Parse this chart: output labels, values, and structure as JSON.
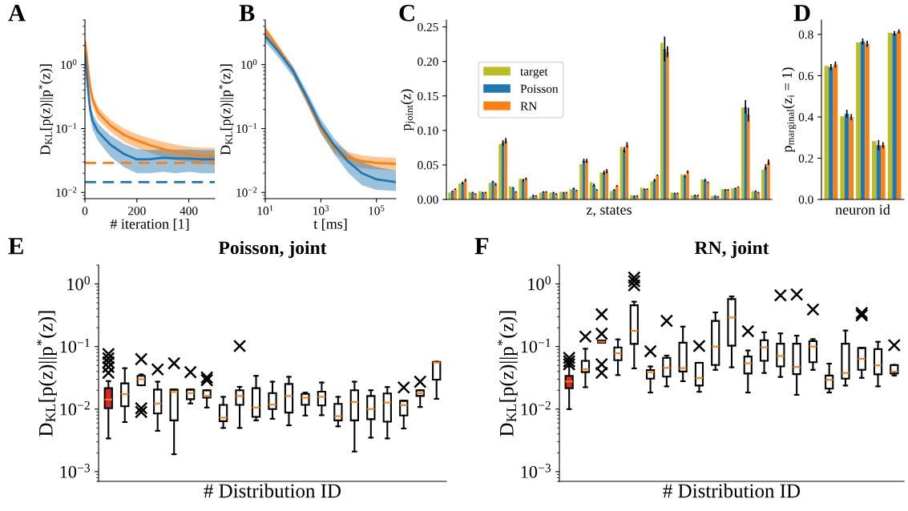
{
  "chart_data": [
    {
      "type": "line",
      "annotations": [
        "A"
      ],
      "xlabel": "# iteration [1]",
      "ylabel": "D$_{KL}$[p(z)||p$^{*}$(z)]",
      "log": "y",
      "xlim": [
        0,
        500
      ],
      "xticks": [
        0,
        200,
        400
      ],
      "ylim": [
        0.008,
        5
      ],
      "yticks": [
        {
          "value": 0.01,
          "label": "10$^{−2}$"
        },
        {
          "value": 0.1,
          "label": "10$^{−1}$"
        },
        {
          "value": 1,
          "label": "10$^{0}$"
        }
      ],
      "x": [
        0,
        5,
        10,
        20,
        30,
        50,
        75,
        100,
        150,
        200,
        250,
        300,
        350,
        400,
        450,
        500
      ],
      "series": [
        {
          "color": "#ff7f0e",
          "values": [
            2.3,
            1.6,
            1.0,
            0.45,
            0.28,
            0.18,
            0.14,
            0.11,
            0.08,
            0.065,
            0.055,
            0.048,
            0.043,
            0.04,
            0.038,
            0.037
          ],
          "lower": [
            2.0,
            1.3,
            0.8,
            0.36,
            0.22,
            0.14,
            0.11,
            0.088,
            0.062,
            0.05,
            0.042,
            0.036,
            0.032,
            0.03,
            0.028,
            0.027
          ],
          "upper": [
            2.6,
            1.9,
            1.2,
            0.55,
            0.34,
            0.22,
            0.17,
            0.135,
            0.1,
            0.082,
            0.07,
            0.062,
            0.056,
            0.052,
            0.05,
            0.05
          ]
        },
        {
          "color": "#1f77b4",
          "values": [
            1.5,
            0.9,
            0.5,
            0.2,
            0.13,
            0.09,
            0.07,
            0.055,
            0.04,
            0.033,
            0.033,
            0.035,
            0.034,
            0.034,
            0.033,
            0.033
          ],
          "lower": [
            1.2,
            0.7,
            0.38,
            0.15,
            0.095,
            0.065,
            0.048,
            0.036,
            0.025,
            0.02,
            0.02,
            0.021,
            0.02,
            0.021,
            0.02,
            0.02
          ],
          "upper": [
            1.8,
            1.1,
            0.62,
            0.26,
            0.17,
            0.12,
            0.095,
            0.077,
            0.058,
            0.048,
            0.046,
            0.048,
            0.047,
            0.047,
            0.046,
            0.046
          ]
        }
      ],
      "ref_lines": [
        {
          "axis": "y",
          "value": 0.029,
          "color": "#ff7f0e",
          "line_style": "dashed"
        },
        {
          "axis": "y",
          "value": 0.0145,
          "color": "#1f77b4",
          "line_style": "dashed"
        }
      ]
    },
    {
      "type": "line",
      "annotations": [
        "B"
      ],
      "xlabel": "t [ms]",
      "ylabel": "D$_{KL}$[p(z)||p$^{*}$(z)]",
      "log": "xy",
      "xlim": [
        10,
        500000
      ],
      "xticks": [
        {
          "value": 10,
          "label": "10$^{1}$"
        },
        {
          "value": 1000,
          "label": "10$^{3}$"
        },
        {
          "value": 100000,
          "label": "10$^{5}$"
        }
      ],
      "ylim": [
        0.008,
        5
      ],
      "yticks": [
        {
          "value": 0.01,
          "label": "10$^{−2}$"
        },
        {
          "value": 0.1,
          "label": "10$^{−1}$"
        },
        {
          "value": 1,
          "label": "10$^{0}$"
        }
      ],
      "x": [
        10,
        30,
        100,
        300,
        1000,
        3000,
        10000,
        30000,
        100000,
        500000
      ],
      "series": [
        {
          "color": "#ff7f0e",
          "values": [
            3.5,
            1.8,
            0.8,
            0.3,
            0.1,
            0.05,
            0.035,
            0.031,
            0.029,
            0.028
          ],
          "lower": [
            3.0,
            1.6,
            0.7,
            0.26,
            0.085,
            0.042,
            0.028,
            0.024,
            0.023,
            0.022
          ],
          "upper": [
            4.0,
            2.0,
            0.9,
            0.34,
            0.12,
            0.06,
            0.043,
            0.038,
            0.036,
            0.035
          ]
        },
        {
          "color": "#1f77b4",
          "values": [
            2.8,
            1.6,
            0.8,
            0.32,
            0.11,
            0.055,
            0.03,
            0.02,
            0.016,
            0.0145
          ],
          "lower": [
            2.3,
            1.3,
            0.65,
            0.26,
            0.085,
            0.04,
            0.02,
            0.013,
            0.011,
            0.0105
          ],
          "upper": [
            3.2,
            1.9,
            0.95,
            0.39,
            0.14,
            0.07,
            0.04,
            0.03,
            0.025,
            0.022
          ]
        }
      ]
    },
    {
      "type": "bar",
      "annotations": [
        "C"
      ],
      "xlabel": "z, states",
      "ylabel": "p$_{joint}$(z)",
      "ylim": [
        0,
        0.26
      ],
      "yticks": [
        {
          "value": 0,
          "label": "0.00"
        },
        {
          "value": 0.05,
          "label": "0.05"
        },
        {
          "value": 0.1,
          "label": "0.10"
        },
        {
          "value": 0.15,
          "label": "0.15"
        },
        {
          "value": 0.2,
          "label": "0.20"
        },
        {
          "value": 0.25,
          "label": "0.25"
        }
      ],
      "legend": "top left",
      "categories": [
        null,
        null,
        null,
        null,
        null,
        null,
        null,
        null,
        null,
        null,
        null,
        null,
        null,
        null,
        null,
        null,
        null,
        null,
        null,
        null,
        null,
        null,
        null,
        null,
        null,
        null,
        null,
        null,
        null,
        null,
        null,
        null
      ],
      "series": [
        {
          "name": "target",
          "color": "#bcbd22",
          "values": [
            0.01,
            0.023,
            0.011,
            0.012,
            0.024,
            0.08,
            0.019,
            0.03,
            0.004,
            0.01,
            0.01,
            0.011,
            0.015,
            0.051,
            0.025,
            0.039,
            0.012,
            0.076,
            0.006,
            0.017,
            0.026,
            0.227,
            0.01,
            0.036,
            0.006,
            0.029,
            0.005,
            0.015,
            0.016,
            0.133,
            0.012,
            0.043
          ]
        },
        {
          "name": "Poisson",
          "color": "#1f77b4",
          "values": [
            0.012,
            0.024,
            0.01,
            0.01,
            0.026,
            0.082,
            0.017,
            0.028,
            0.006,
            0.011,
            0.01,
            0.01,
            0.016,
            0.056,
            0.021,
            0.039,
            0.014,
            0.072,
            0.005,
            0.015,
            0.028,
            0.218,
            0.009,
            0.034,
            0.006,
            0.028,
            0.005,
            0.014,
            0.016,
            0.134,
            0.012,
            0.047
          ],
          "errors": [
            0.001,
            0.002,
            0.001,
            0.001,
            0.001,
            0.004,
            0.001,
            0.002,
            0.001,
            0.001,
            0.001,
            0.001,
            0.001,
            0.003,
            0.002,
            0.003,
            0.001,
            0.004,
            0.001,
            0.001,
            0.002,
            0.018,
            0.001,
            0.002,
            0.001,
            0.002,
            0.001,
            0.001,
            0.001,
            0.01,
            0.001,
            0.004
          ]
        },
        {
          "name": "RN",
          "color": "#ff7f0e",
          "values": [
            0.015,
            0.028,
            0.008,
            0.01,
            0.022,
            0.085,
            0.011,
            0.03,
            0.005,
            0.011,
            0.008,
            0.01,
            0.013,
            0.056,
            0.014,
            0.041,
            0.02,
            0.079,
            0.005,
            0.015,
            0.035,
            0.214,
            0.009,
            0.04,
            0.006,
            0.025,
            0.004,
            0.014,
            0.018,
            0.123,
            0.01,
            0.054
          ],
          "errors": [
            0.001,
            0.002,
            0.001,
            0.001,
            0.002,
            0.004,
            0.001,
            0.002,
            0.001,
            0.001,
            0.001,
            0.001,
            0.001,
            0.003,
            0.001,
            0.003,
            0.001,
            0.004,
            0.001,
            0.001,
            0.001,
            0.008,
            0.001,
            0.002,
            0.001,
            0.001,
            0.001,
            0.001,
            0.001,
            0.01,
            0.001,
            0.004
          ]
        }
      ]
    },
    {
      "type": "bar",
      "annotations": [
        "D"
      ],
      "xlabel": "neuron id",
      "ylabel": "p$_{marginal}$(z$_{i}$ = 1)",
      "ylim": [
        0,
        0.87
      ],
      "yticks": [
        {
          "value": 0,
          "label": "0.0"
        },
        {
          "value": 0.2,
          "label": "0.2"
        },
        {
          "value": 0.4,
          "label": "0.4"
        },
        {
          "value": 0.6,
          "label": "0.6"
        },
        {
          "value": 0.8,
          "label": "0.8"
        }
      ],
      "categories": [
        null,
        null,
        null,
        null,
        null
      ],
      "series": [
        {
          "color": "#bcbd22",
          "values": [
            0.648,
            0.403,
            0.761,
            0.283,
            0.808
          ]
        },
        {
          "color": "#1f77b4",
          "values": [
            0.641,
            0.415,
            0.766,
            0.263,
            0.805
          ],
          "errors": [
            0.015,
            0.02,
            0.015,
            0.025,
            0.012
          ]
        },
        {
          "color": "#ff7f0e",
          "values": [
            0.654,
            0.399,
            0.755,
            0.263,
            0.815
          ],
          "errors": [
            0.015,
            0.015,
            0.015,
            0.015,
            0.01
          ]
        }
      ]
    },
    {
      "type": "box",
      "annotations": [
        "E"
      ],
      "title": "Poisson, joint",
      "xlabel": "# Distribution ID",
      "ylabel": "D$_{KL}$[p(z)||p$^{*}$(z)]",
      "log": "y",
      "ylim": [
        0.0007,
        2
      ],
      "yticks": [
        {
          "value": 0.001,
          "label": "10$^{−3}$"
        },
        {
          "value": 0.01,
          "label": "10$^{−2}$"
        },
        {
          "value": 0.1,
          "label": "10$^{−1}$"
        },
        {
          "value": 1,
          "label": "10$^{0}$"
        }
      ],
      "tick_labels": "y",
      "marker": "cross",
      "categories": [
        null,
        null,
        null,
        null,
        null,
        null,
        null,
        null,
        null,
        null,
        null,
        null,
        null,
        null,
        null,
        null,
        null,
        null,
        null,
        null,
        null
      ],
      "series": [
        {
          "color": "#d62728",
          "boxes": [
            {
              "low": 0.0034,
              "q1": 0.0103,
              "median": 0.0142,
              "q3": 0.0216,
              "high": 0.028,
              "outliers": [
                0.076,
                0.065,
                0.056,
                0.047,
                0.038
              ]
            },
            null,
            null,
            null,
            null,
            null,
            null,
            null,
            null,
            null,
            null,
            null,
            null,
            null,
            null,
            null,
            null,
            null,
            null,
            null,
            null
          ]
        },
        {
          "color": "#ffffff",
          "boxes": [
            null,
            {
              "low": 0.0062,
              "q1": 0.0111,
              "median": 0.0173,
              "q3": 0.0258,
              "high": 0.045
            },
            {
              "low": 0.024,
              "q1": 0.024,
              "median": 0.03,
              "q3": 0.034,
              "high": 0.0357,
              "outliers": [
                0.063,
                0.0103,
                0.009
              ]
            },
            {
              "low": 0.0045,
              "q1": 0.0085,
              "median": 0.0123,
              "q3": 0.0205,
              "high": 0.0274,
              "outliers": [
                0.043
              ]
            },
            {
              "low": 0.0019,
              "q1": 0.0066,
              "median": 0.0188,
              "q3": 0.0205,
              "high": 0.0205,
              "outliers": [
                0.054
              ]
            },
            {
              "low": 0.0123,
              "q1": 0.0144,
              "median": 0.018,
              "q3": 0.0205,
              "high": 0.0205,
              "outliers": [
                0.039
              ]
            },
            {
              "low": 0.0106,
              "q1": 0.0152,
              "median": 0.0162,
              "q3": 0.02,
              "high": 0.02,
              "outliers": [
                0.032,
                0.029
              ]
            },
            {
              "low": 0.005,
              "q1": 0.0064,
              "median": 0.0073,
              "q3": 0.0117,
              "high": 0.0157
            },
            {
              "low": 0.005,
              "q1": 0.0117,
              "median": 0.0162,
              "q3": 0.02,
              "high": 0.0227,
              "outliers": [
                0.102
              ]
            },
            {
              "low": 0.0066,
              "q1": 0.0075,
              "median": 0.0106,
              "q3": 0.0216,
              "high": 0.034
            },
            {
              "low": 0.007,
              "q1": 0.01,
              "median": 0.0118,
              "q3": 0.018,
              "high": 0.0274
            },
            {
              "low": 0.0055,
              "q1": 0.0088,
              "median": 0.0162,
              "q3": 0.0252,
              "high": 0.0328
            },
            {
              "low": 0.0079,
              "q1": 0.0117,
              "median": 0.0152,
              "q3": 0.0175,
              "high": 0.0183
            },
            {
              "low": 0.008,
              "q1": 0.0114,
              "median": 0.0157,
              "q3": 0.019,
              "high": 0.0266
            },
            {
              "low": 0.0053,
              "q1": 0.0066,
              "median": 0.0077,
              "q3": 0.0121,
              "high": 0.0157
            },
            {
              "low": 0.0021,
              "q1": 0.0066,
              "median": 0.013,
              "q3": 0.02,
              "high": 0.0274
            },
            {
              "low": 0.0035,
              "q1": 0.0069,
              "median": 0.01,
              "q3": 0.0162,
              "high": 0.02
            },
            {
              "low": 0.0034,
              "q1": 0.0063,
              "median": 0.0127,
              "q3": 0.0178,
              "high": 0.0225
            },
            {
              "low": 0.0049,
              "q1": 0.0079,
              "median": 0.0116,
              "q3": 0.0136,
              "high": 0.0136,
              "outliers": [
                0.0222
              ]
            },
            {
              "low": 0.0108,
              "q1": 0.0162,
              "median": 0.018,
              "q3": 0.02,
              "high": 0.02,
              "outliers": [
                0.0274
              ]
            },
            {
              "low": 0.0146,
              "q1": 0.0295,
              "median": 0.0555,
              "q3": 0.057,
              "high": 0.057
            }
          ]
        }
      ]
    },
    {
      "type": "box",
      "annotations": [
        "F"
      ],
      "title": "RN, joint",
      "xlabel": "# Distribution ID",
      "ylabel": "D$_{KL}$[p(z)||p$^{*}$(z)]",
      "log": "y",
      "ylim": [
        0.0007,
        2
      ],
      "yticks": [
        {
          "value": 0.001,
          "label": "10$^{−3}$"
        },
        {
          "value": 0.01,
          "label": "10$^{−2}$"
        },
        {
          "value": 0.1,
          "label": "10$^{−1}$"
        },
        {
          "value": 1,
          "label": "10$^{0}$"
        }
      ],
      "tick_labels": "y",
      "marker": "cross",
      "categories": [
        null,
        null,
        null,
        null,
        null,
        null,
        null,
        null,
        null,
        null,
        null,
        null,
        null,
        null,
        null,
        null,
        null,
        null,
        null,
        null,
        null
      ],
      "series": [
        {
          "color": "#d62728",
          "boxes": [
            {
              "low": 0.01,
              "q1": 0.0215,
              "median": 0.0276,
              "q3": 0.034,
              "high": 0.048,
              "outliers": [
                0.066,
                0.058,
                0.052
              ]
            },
            null,
            null,
            null,
            null,
            null,
            null,
            null,
            null,
            null,
            null,
            null,
            null,
            null,
            null,
            null,
            null,
            null,
            null,
            null,
            null
          ]
        },
        {
          "color": "#ffffff",
          "boxes": [
            null,
            {
              "low": 0.0224,
              "q1": 0.039,
              "median": 0.0433,
              "q3": 0.059,
              "high": 0.092,
              "outliers": [
                0.144
              ]
            },
            {
              "low": 0.115,
              "q1": 0.115,
              "median": 0.119,
              "q3": 0.125,
              "high": 0.125,
              "outliers": [
                0.327,
                0.16,
                0.052,
                0.038
              ]
            },
            {
              "low": 0.035,
              "q1": 0.0605,
              "median": 0.078,
              "q3": 0.097,
              "high": 0.13
            },
            {
              "low": 0.0447,
              "q1": 0.11,
              "median": 0.178,
              "q3": 0.456,
              "high": 0.52,
              "outliers": [
                1.26,
                1.11,
                0.95
              ]
            },
            {
              "low": 0.0184,
              "q1": 0.0306,
              "median": 0.039,
              "q3": 0.042,
              "high": 0.048,
              "outliers": [
                0.084
              ]
            },
            {
              "low": 0.0231,
              "q1": 0.033,
              "median": 0.0456,
              "q3": 0.066,
              "high": 0.0716,
              "outliers": [
                0.257
              ]
            },
            {
              "low": 0.0279,
              "q1": 0.0398,
              "median": 0.0451,
              "q3": 0.115,
              "high": 0.208
            },
            {
              "low": 0.0189,
              "q1": 0.0238,
              "median": 0.0313,
              "q3": 0.055,
              "high": 0.055,
              "outliers": [
                0.102
              ]
            },
            {
              "low": 0.0424,
              "q1": 0.0507,
              "median": 0.1,
              "q3": 0.257,
              "high": 0.351
            },
            {
              "low": 0.0466,
              "q1": 0.103,
              "median": 0.291,
              "q3": 0.574,
              "high": 0.631
            },
            {
              "low": 0.0184,
              "q1": 0.037,
              "median": 0.054,
              "q3": 0.0693,
              "high": 0.0864,
              "outliers": [
                0.176
              ]
            },
            {
              "low": 0.0378,
              "q1": 0.059,
              "median": 0.097,
              "q3": 0.126,
              "high": 0.169
            },
            {
              "low": 0.0327,
              "q1": 0.048,
              "median": 0.0708,
              "q3": 0.111,
              "high": 0.162,
              "outliers": [
                0.658
              ]
            },
            {
              "low": 0.0169,
              "q1": 0.0362,
              "median": 0.0471,
              "q3": 0.111,
              "high": 0.149,
              "outliers": [
                0.679
              ]
            },
            {
              "low": 0.0424,
              "q1": 0.0562,
              "median": 0.1,
              "q3": 0.122,
              "high": 0.131,
              "outliers": [
                0.39
              ]
            },
            {
              "low": 0.0184,
              "q1": 0.0212,
              "median": 0.0294,
              "q3": 0.0344,
              "high": 0.0533
            },
            {
              "low": 0.0238,
              "q1": 0.0306,
              "median": 0.0378,
              "q3": 0.111,
              "high": 0.18
            },
            {
              "low": 0.0316,
              "q1": 0.0424,
              "median": 0.0638,
              "q3": 0.095,
              "high": 0.095,
              "outliers": [
                0.344,
                0.316
              ]
            },
            {
              "low": 0.0231,
              "q1": 0.0359,
              "median": 0.05,
              "q3": 0.091,
              "high": 0.119
            },
            {
              "low": 0.0344,
              "q1": 0.037,
              "median": 0.0398,
              "q3": 0.0507,
              "high": 0.0507,
              "outliers": [
                0.105
              ]
            }
          ]
        }
      ]
    }
  ]
}
